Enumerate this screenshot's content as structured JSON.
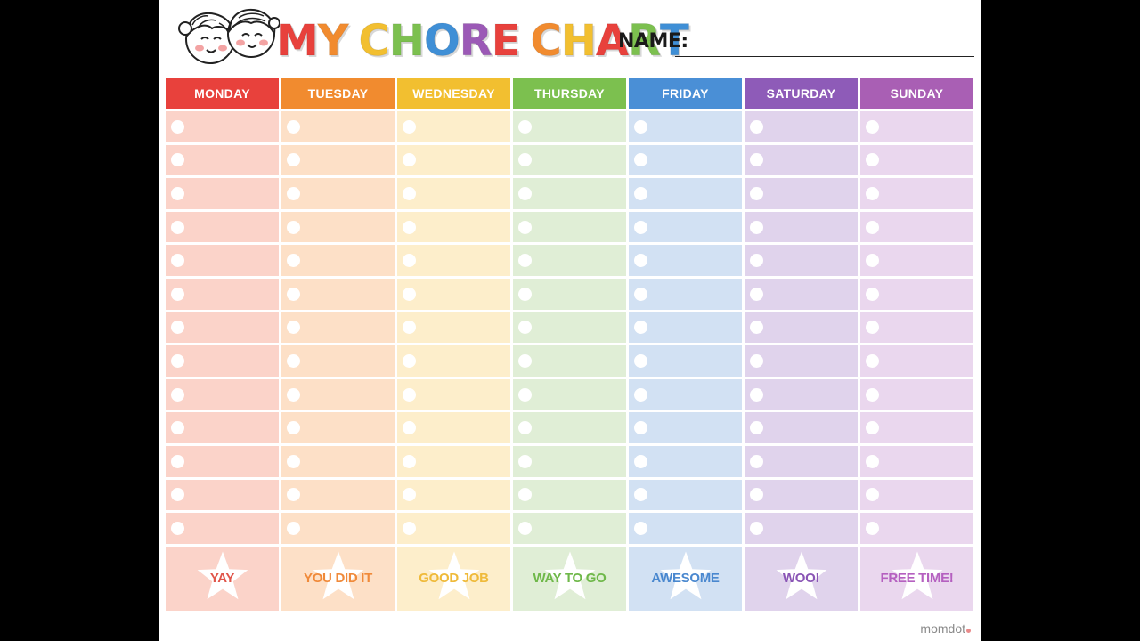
{
  "title_letters": [
    {
      "ch": "M",
      "color": "#e8413c"
    },
    {
      "ch": "Y",
      "color": "#f18b2f"
    },
    {
      "ch": " ",
      "color": "#ffffff"
    },
    {
      "ch": "C",
      "color": "#f2bf30"
    },
    {
      "ch": "H",
      "color": "#7cc04f"
    },
    {
      "ch": "O",
      "color": "#3f8fd6"
    },
    {
      "ch": "R",
      "color": "#9b59b6"
    },
    {
      "ch": "E",
      "color": "#e8413c"
    },
    {
      "ch": " ",
      "color": "#ffffff"
    },
    {
      "ch": "C",
      "color": "#f18b2f"
    },
    {
      "ch": "H",
      "color": "#f2bf30"
    },
    {
      "ch": "A",
      "color": "#e8413c"
    },
    {
      "ch": "R",
      "color": "#7cc04f"
    },
    {
      "ch": "T",
      "color": "#3f8fd6"
    }
  ],
  "name_label": "NAME:",
  "days": [
    {
      "label": "MONDAY",
      "head": "#e8413c",
      "cell": "#fbd3c9",
      "text": "#e0554a",
      "reward": "YAY"
    },
    {
      "label": "TUESDAY",
      "head": "#f18b2f",
      "cell": "#fde0c7",
      "text": "#f08a3a",
      "reward": "YOU DID IT"
    },
    {
      "label": "WEDNESDAY",
      "head": "#f2bf30",
      "cell": "#fdeecb",
      "text": "#efba3a",
      "reward": "GOOD JOB"
    },
    {
      "label": "THURSDAY",
      "head": "#7cc04f",
      "cell": "#e0eed6",
      "text": "#6fb84a",
      "reward": "WAY TO GO"
    },
    {
      "label": "FRIDAY",
      "head": "#4a8fd6",
      "cell": "#d2e1f3",
      "text": "#4a88cf",
      "reward": "AWESOME"
    },
    {
      "label": "SATURDAY",
      "head": "#8e5bb8",
      "cell": "#e0d3ec",
      "text": "#8a55b5",
      "reward": "WOO!"
    },
    {
      "label": "SUNDAY",
      "head": "#a95fb4",
      "cell": "#ead7ee",
      "text": "#b560c0",
      "reward": "FREE TIME!"
    }
  ],
  "rows_per_day": 13,
  "brand": "momdot"
}
